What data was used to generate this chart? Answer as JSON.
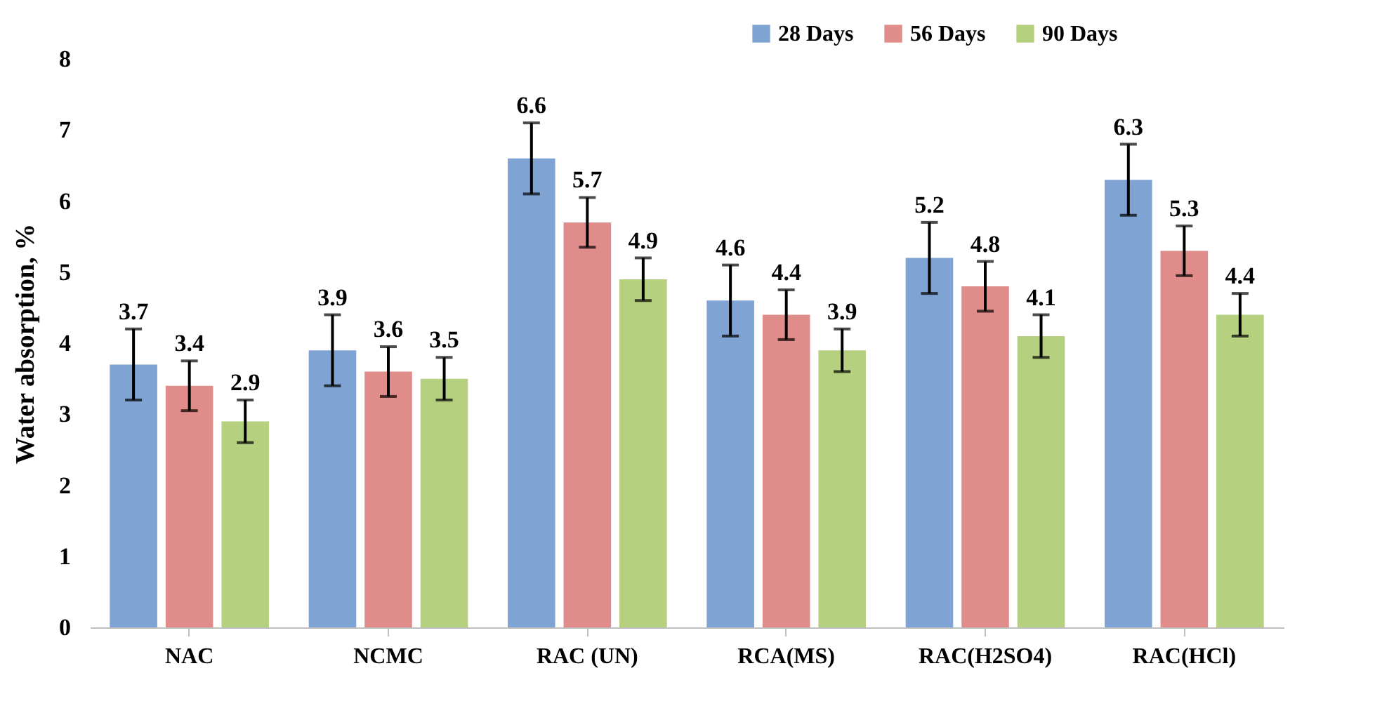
{
  "chart_data": {
    "type": "bar",
    "ylabel": "Water absorption, %",
    "categories": [
      "NAC",
      "NCMC",
      "RAC (UN)",
      "RCA(MS)",
      "RAC(H2SO4)",
      "RAC(HCl)"
    ],
    "series": [
      {
        "name": "28 Days",
        "color": "#7fa3d3",
        "values": [
          3.7,
          3.9,
          6.6,
          4.6,
          5.2,
          6.3
        ],
        "errors": [
          0.5,
          0.5,
          0.5,
          0.5,
          0.5,
          0.5
        ]
      },
      {
        "name": "56 Days",
        "color": "#e08c8a",
        "values": [
          3.4,
          3.6,
          5.7,
          4.4,
          4.8,
          5.3
        ],
        "errors": [
          0.35,
          0.35,
          0.35,
          0.35,
          0.35,
          0.35
        ]
      },
      {
        "name": "90 Days",
        "color": "#b5d07e",
        "values": [
          2.9,
          3.5,
          4.9,
          3.9,
          4.1,
          4.4
        ],
        "errors": [
          0.3,
          0.3,
          0.3,
          0.3,
          0.3,
          0.3
        ]
      }
    ],
    "ylim": [
      0,
      8
    ],
    "yticks": [
      0,
      1,
      2,
      3,
      4,
      5,
      6,
      7,
      8
    ],
    "grid": false,
    "legend": "top right",
    "data_labels": true
  }
}
